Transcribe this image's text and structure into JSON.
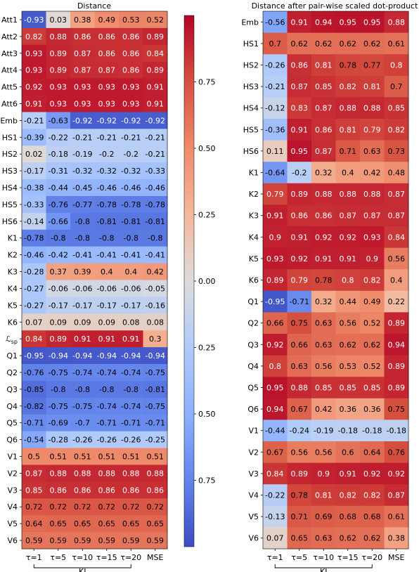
{
  "chart_data": [
    {
      "type": "heatmap",
      "title": "Distance",
      "columns": [
        "τ=1",
        "τ=5",
        "τ=10",
        "τ=15",
        "τ=20",
        "MSE"
      ],
      "column_group_label": "KI",
      "rows": [
        "Att1",
        "Att2",
        "Att3",
        "Att4",
        "Att5",
        "Att6",
        "Emb",
        "HS1",
        "HS2",
        "HS3",
        "HS4",
        "HS5",
        "HS6",
        "K1",
        "K2",
        "K3",
        "K4",
        "K5",
        "K6",
        "ℒsp",
        "Q1",
        "Q2",
        "Q3",
        "Q4",
        "Q5",
        "Q6",
        "V1",
        "V2",
        "V3",
        "V4",
        "V5",
        "V6"
      ],
      "values": [
        [
          -0.93,
          0.03,
          0.38,
          0.49,
          0.53,
          0.52
        ],
        [
          0.82,
          0.88,
          0.86,
          0.86,
          0.86,
          0.89
        ],
        [
          0.93,
          0.89,
          0.87,
          0.86,
          0.86,
          0.84
        ],
        [
          0.93,
          0.89,
          0.87,
          0.87,
          0.86,
          0.89
        ],
        [
          0.92,
          0.93,
          0.93,
          0.93,
          0.93,
          0.91
        ],
        [
          0.91,
          0.93,
          0.93,
          0.93,
          0.93,
          0.91
        ],
        [
          -0.21,
          -0.63,
          -0.92,
          -0.92,
          -0.92,
          -0.92
        ],
        [
          -0.39,
          -0.22,
          -0.21,
          -0.21,
          -0.21,
          -0.21
        ],
        [
          0.02,
          -0.18,
          -0.19,
          -0.2,
          -0.2,
          -0.21
        ],
        [
          -0.17,
          -0.31,
          -0.32,
          -0.32,
          -0.32,
          -0.33
        ],
        [
          -0.38,
          -0.44,
          -0.45,
          -0.46,
          -0.46,
          -0.46
        ],
        [
          -0.33,
          -0.76,
          -0.77,
          -0.78,
          -0.78,
          -0.78
        ],
        [
          -0.14,
          -0.66,
          -0.8,
          -0.81,
          -0.81,
          -0.81
        ],
        [
          -0.78,
          -0.8,
          -0.8,
          -0.8,
          -0.8,
          -0.8
        ],
        [
          -0.46,
          -0.42,
          -0.41,
          -0.41,
          -0.41,
          -0.41
        ],
        [
          -0.28,
          0.37,
          0.39,
          0.4,
          0.4,
          0.42
        ],
        [
          -0.27,
          -0.06,
          -0.06,
          -0.06,
          -0.06,
          -0.05
        ],
        [
          -0.27,
          -0.17,
          -0.17,
          -0.17,
          -0.17,
          -0.16
        ],
        [
          0.07,
          0.09,
          0.09,
          0.09,
          0.08,
          0.08
        ],
        [
          0.84,
          0.89,
          0.91,
          0.91,
          0.91,
          0.3
        ],
        [
          -0.95,
          -0.94,
          -0.94,
          -0.94,
          -0.94,
          -0.94
        ],
        [
          -0.76,
          -0.75,
          -0.74,
          -0.74,
          -0.74,
          -0.75
        ],
        [
          -0.85,
          -0.8,
          -0.8,
          -0.8,
          -0.8,
          -0.81
        ],
        [
          -0.82,
          -0.75,
          -0.75,
          -0.74,
          -0.74,
          -0.75
        ],
        [
          -0.71,
          -0.69,
          -0.7,
          -0.71,
          -0.71,
          -0.71
        ],
        [
          -0.54,
          -0.28,
          -0.26,
          -0.26,
          -0.26,
          -0.25
        ],
        [
          0.5,
          0.51,
          0.51,
          0.51,
          0.51,
          0.51
        ],
        [
          0.87,
          0.88,
          0.88,
          0.88,
          0.88,
          0.88
        ],
        [
          0.85,
          0.86,
          0.86,
          0.86,
          0.86,
          0.86
        ],
        [
          0.72,
          0.72,
          0.72,
          0.72,
          0.72,
          0.72
        ],
        [
          0.64,
          0.65,
          0.65,
          0.65,
          0.65,
          0.65
        ],
        [
          0.59,
          0.59,
          0.59,
          0.59,
          0.59,
          0.59
        ]
      ],
      "colormap": "coolwarm",
      "value_range": [
        -1,
        1
      ],
      "colorbar_ticks": [
        "0.75",
        "0.50",
        "0.25",
        "0.00",
        "0.25",
        "0.50",
        "0.75"
      ]
    },
    {
      "type": "heatmap",
      "title": "Distance after pair-wise scaled dot-product",
      "columns": [
        "τ=1",
        "τ=5",
        "τ=10",
        "τ=15",
        "τ=20",
        "MSE"
      ],
      "column_group_label": "KI",
      "rows": [
        "Emb",
        "HS1",
        "HS2",
        "HS3",
        "HS4",
        "HS5",
        "HS6",
        "K1",
        "K2",
        "K3",
        "K4",
        "K5",
        "K6",
        "Q1",
        "Q2",
        "Q3",
        "Q4",
        "Q5",
        "Q6",
        "V1",
        "V2",
        "V3",
        "V4",
        "V5",
        "V6"
      ],
      "values": [
        [
          -0.56,
          0.91,
          0.94,
          0.95,
          0.95,
          0.88
        ],
        [
          0.7,
          0.62,
          0.62,
          0.62,
          0.62,
          0.61
        ],
        [
          -0.26,
          0.86,
          0.81,
          0.78,
          0.77,
          0.8
        ],
        [
          -0.21,
          0.87,
          0.85,
          0.82,
          0.81,
          0.7
        ],
        [
          -0.12,
          0.83,
          0.87,
          0.88,
          0.88,
          0.85
        ],
        [
          -0.36,
          0.91,
          0.86,
          0.81,
          0.79,
          0.82
        ],
        [
          0.11,
          0.95,
          0.87,
          0.71,
          0.63,
          0.73
        ],
        [
          -0.64,
          -0.2,
          0.32,
          0.4,
          0.42,
          0.48
        ],
        [
          0.79,
          0.89,
          0.88,
          0.88,
          0.88,
          0.87
        ],
        [
          0.91,
          0.86,
          0.86,
          0.87,
          0.87,
          0.87
        ],
        [
          0.9,
          0.91,
          0.92,
          0.92,
          0.93,
          0.84
        ],
        [
          0.93,
          0.92,
          0.91,
          0.91,
          0.9,
          0.56
        ],
        [
          0.89,
          0.79,
          0.78,
          0.8,
          0.82,
          0.4
        ],
        [
          -0.95,
          -0.71,
          0.32,
          0.44,
          0.49,
          0.22
        ],
        [
          0.66,
          0.75,
          0.63,
          0.56,
          0.52,
          0.89
        ],
        [
          0.92,
          0.66,
          0.63,
          0.62,
          0.62,
          0.94
        ],
        [
          0.8,
          0.63,
          0.56,
          0.53,
          0.52,
          0.89
        ],
        [
          0.95,
          0.88,
          0.85,
          0.85,
          0.85,
          0.89
        ],
        [
          0.94,
          0.67,
          0.42,
          0.36,
          0.36,
          0.75
        ],
        [
          -0.44,
          -0.24,
          -0.19,
          -0.18,
          -0.18,
          -0.18
        ],
        [
          0.67,
          0.56,
          0.56,
          0.6,
          0.64,
          0.76
        ],
        [
          0.84,
          0.89,
          0.9,
          0.91,
          0.92,
          0.92
        ],
        [
          -0.22,
          0.78,
          0.81,
          0.82,
          0.82,
          0.87
        ],
        [
          -0.13,
          0.71,
          0.69,
          0.68,
          0.68,
          0.61
        ],
        [
          0.07,
          0.65,
          0.63,
          0.62,
          0.62,
          0.38
        ]
      ],
      "colormap": "coolwarm",
      "value_range": [
        -1,
        1
      ]
    }
  ]
}
